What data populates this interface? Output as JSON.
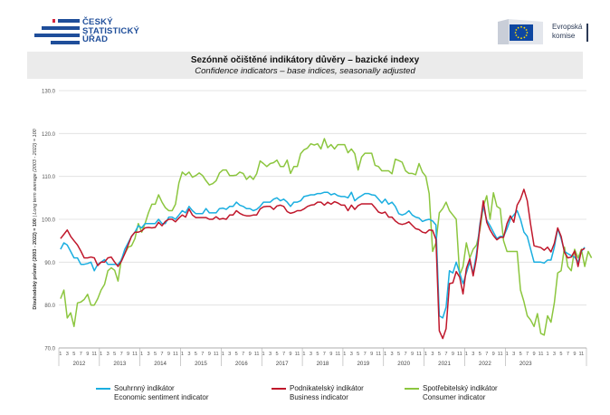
{
  "header": {
    "csu_logo_lines": [
      "ČESKÝ",
      "STATISTICKÝ",
      "ÚŘAD"
    ],
    "ec_logo_lines": [
      "Evropská",
      "komise"
    ]
  },
  "colors": {
    "economic": "#1aaee0",
    "business": "#c0172b",
    "consumer": "#8cc63f",
    "grid": "#dddddd",
    "title_bg": "#ebebeb",
    "csu_blue": "#1f4e9a",
    "ec_blue": "#0e47a1",
    "ec_star": "#ffdd00"
  },
  "chart_data": {
    "type": "line",
    "title": "Sezónně očištěné indikátory důvěry – bazické indexy",
    "subtitle": "Confidence indicators – base indices, seasonally adjusted",
    "ylabel": "Dlouhodobý průměr (2003 - 2022) = 100",
    "ylabel_en": "| Long term average (2003 - 2022) = 100",
    "ylim": [
      70,
      130
    ],
    "yticks": [
      "70.0",
      "80.0",
      "90.0",
      "100.0",
      "110.0",
      "120.0",
      "130.0"
    ],
    "x_start": "2012-01",
    "month_ticks": [
      "1",
      "3",
      "5",
      "7",
      "9",
      "11"
    ],
    "years": [
      "2012",
      "2013",
      "2014",
      "2015",
      "2016",
      "2017",
      "2018",
      "2019",
      "2020",
      "2021",
      "2022",
      "2023"
    ],
    "grid": true,
    "legend": [
      {
        "key": "economic",
        "label_cs": "Souhrnný indikátor",
        "label_en": "Economic sentiment indicator"
      },
      {
        "key": "business",
        "label_cs": "Podnikatelský indikátor",
        "label_en": "Business indicator"
      },
      {
        "key": "consumer",
        "label_cs": "Spotřebitelský indikátor",
        "label_en": "Consumer indicator"
      }
    ],
    "series": [
      {
        "name": "economic",
        "values": [
          93,
          94.5,
          94,
          92.5,
          91,
          91,
          89.5,
          89.5,
          89.7,
          90,
          88,
          89.5,
          90,
          90.6,
          89.5,
          89.5,
          89.5,
          89.5,
          90.5,
          93,
          94.5,
          96,
          97,
          98.5,
          98,
          99,
          99,
          99,
          99,
          100,
          99,
          99,
          100.5,
          100.5,
          100,
          101,
          102,
          101.5,
          103,
          102,
          101.3,
          101.3,
          101.3,
          102.5,
          101.5,
          101.5,
          101.5,
          102.5,
          102.6,
          102.3,
          103,
          103,
          104,
          103.3,
          103,
          102.5,
          102.5,
          102,
          102.3,
          103,
          104,
          104,
          104,
          104.7,
          105,
          104.3,
          104.7,
          104,
          103,
          104,
          104,
          104.3,
          105.3,
          105.5,
          105.7,
          105.7,
          106,
          106,
          106.3,
          106.3,
          105.7,
          106,
          105.5,
          105.3,
          105.3,
          105,
          106.3,
          104.3,
          105,
          105.5,
          106,
          106,
          105.7,
          105.6,
          104.7,
          103.8,
          104.7,
          103.5,
          104,
          103,
          101.3,
          101,
          101.3,
          102,
          101,
          100.5,
          100.3,
          99.5,
          99.8,
          100,
          99.6,
          98.7,
          77.5,
          77,
          79.5,
          88,
          87.5,
          90,
          87.5,
          85,
          87.5,
          90,
          87.5,
          92,
          99,
          103,
          99.8,
          98.5,
          97,
          95.5,
          96,
          96,
          97.8,
          100,
          101,
          102,
          100,
          97,
          96,
          93,
          90,
          90,
          90,
          89.8,
          90.5,
          90.5,
          93.5,
          97.8,
          95.5,
          92.5,
          92,
          91.5,
          91.2,
          90,
          92.5,
          93.5
        ]
      },
      {
        "name": "business",
        "values": [
          95.5,
          96.5,
          97.5,
          96,
          95,
          94,
          92.6,
          91,
          91,
          91.2,
          91,
          89.2,
          90,
          90,
          91,
          91.2,
          90,
          89,
          90.2,
          92,
          94,
          96,
          97,
          97,
          97.3,
          98,
          98.1,
          98,
          98.1,
          99.3,
          98.5,
          99.5,
          100,
          100,
          99.4,
          100.3,
          101,
          100.5,
          102.4,
          101,
          100.4,
          100.4,
          100.4,
          100.4,
          100,
          100,
          100.6,
          100,
          100.2,
          100,
          101,
          101,
          102,
          101.4,
          101,
          100.8,
          100.8,
          101,
          101,
          102.4,
          102.9,
          103,
          103,
          102.3,
          103.1,
          103.3,
          103,
          101.8,
          101.4,
          101.6,
          102,
          102,
          102.4,
          103,
          103.3,
          103.4,
          104,
          104,
          103.3,
          104,
          103.5,
          104.1,
          103.8,
          103.3,
          103.3,
          102,
          103.3,
          102.3,
          103.2,
          103.6,
          103.6,
          103.6,
          103.6,
          102.7,
          101.7,
          101.4,
          101.7,
          100.5,
          100.5,
          99.6,
          99,
          98.8,
          99,
          99.4,
          98.6,
          97.8,
          97.6,
          97,
          96.8,
          97.5,
          97.4,
          95.3,
          74,
          72.2,
          74.5,
          85,
          85.2,
          87.8,
          86.5,
          82.6,
          88.5,
          90.8,
          86.8,
          91,
          98.3,
          104.3,
          99.3,
          97.5,
          96.2,
          95.2,
          95.8,
          95.8,
          99,
          100.8,
          99.3,
          103.3,
          104.7,
          107,
          104.3,
          98.8,
          93.8,
          93.6,
          93.4,
          92.8,
          93.5,
          92.4,
          94.4,
          98,
          96,
          92.3,
          91,
          91.2,
          92.6,
          89,
          92.8,
          93.2
        ]
      },
      {
        "name": "consumer",
        "values": [
          81.5,
          83.5,
          77,
          78.2,
          75,
          80.5,
          80.7,
          81.3,
          82.5,
          80,
          80,
          81.5,
          83.5,
          84.8,
          88,
          88.7,
          88.1,
          85.6,
          90.7,
          92,
          93.5,
          93.8,
          95.5,
          99,
          97,
          99,
          101.5,
          103.5,
          103.5,
          105.7,
          104,
          102.7,
          102,
          102,
          103.5,
          108.5,
          111,
          110.3,
          111,
          109.8,
          110.2,
          110.8,
          110.2,
          109,
          108,
          108.3,
          109,
          110.8,
          111.5,
          111.5,
          110.2,
          110.2,
          110.3,
          111,
          110.7,
          109.3,
          110.1,
          109.3,
          110.6,
          113.6,
          113,
          112.3,
          113,
          113.2,
          113.8,
          112.3,
          112.3,
          113.8,
          110.7,
          112.3,
          112.3,
          115.3,
          116.2,
          116.6,
          117.6,
          117.3,
          117.6,
          116.4,
          118.8,
          116.7,
          117.4,
          116.4,
          117.4,
          117.4,
          117.4,
          115.5,
          116.4,
          115.3,
          111.5,
          114.5,
          115.4,
          115.4,
          115.4,
          112.6,
          112.3,
          111.3,
          111.3,
          111.3,
          110.6,
          114,
          113.7,
          113.3,
          111.3,
          110.7,
          110.7,
          110.4,
          113,
          111,
          110,
          106,
          92.5,
          94.5,
          101.5,
          102.5,
          104,
          102,
          101,
          100,
          87,
          89,
          94.5,
          91,
          93,
          94,
          97.5,
          103,
          105.5,
          100,
          106.2,
          103,
          102.5,
          95,
          92.5,
          92.5,
          92.5,
          92.5,
          83.5,
          80.8,
          77.5,
          76.5,
          75,
          78,
          73.4,
          73,
          77.5,
          76,
          80.5,
          87.5,
          88,
          93.5,
          89,
          88,
          93,
          91,
          93,
          89,
          92.5,
          91
        ]
      }
    ]
  }
}
